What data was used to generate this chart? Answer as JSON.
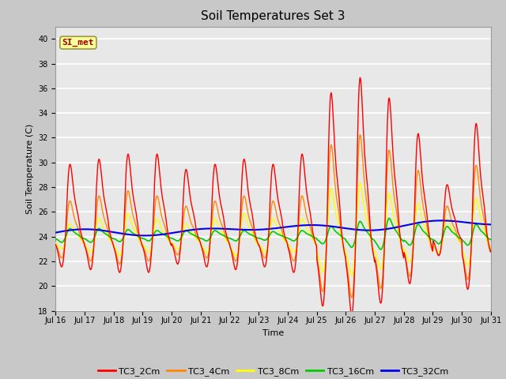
{
  "title": "Soil Temperatures Set 3",
  "xlabel": "Time",
  "ylabel": "Soil Temperature (C)",
  "ylim": [
    18,
    41
  ],
  "yticks": [
    18,
    20,
    22,
    24,
    26,
    28,
    30,
    32,
    34,
    36,
    38,
    40
  ],
  "fig_bg_color": "#c8c8c8",
  "plot_bg_color": "#e8e8e8",
  "legend_labels": [
    "TC3_2Cm",
    "TC3_4Cm",
    "TC3_8Cm",
    "TC3_16Cm",
    "TC3_32Cm"
  ],
  "line_colors": [
    "#ff0000",
    "#ff8800",
    "#ffff00",
    "#00cc00",
    "#0000ee"
  ],
  "line_widths": [
    1.0,
    1.0,
    1.0,
    1.2,
    1.5
  ],
  "annotation_text": "SI_met",
  "annotation_color": "#990000",
  "annotation_bg": "#ffff99",
  "annotation_border": "#999944",
  "xtick_labels": [
    "Jul 16",
    "Jul 17",
    "Jul 18",
    "Jul 19",
    "Jul 20",
    "Jul 21",
    "Jul 22",
    "Jul 23",
    "Jul 24",
    "Jul 25",
    "Jul 26",
    "Jul 27",
    "Jul 28",
    "Jul 29",
    "Jul 30",
    "Jul 31"
  ],
  "n_points": 960
}
